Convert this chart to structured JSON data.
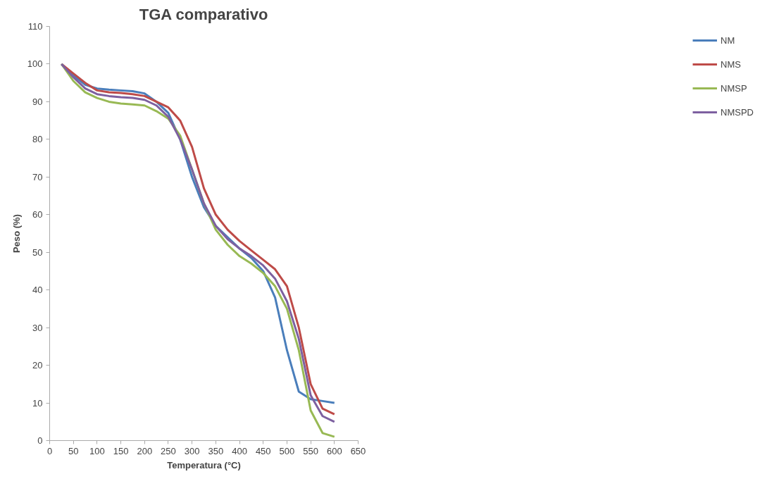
{
  "chart_data": {
    "type": "line",
    "title": "TGA comparativo",
    "xlabel": "Temperatura (°C)",
    "ylabel": "Peso (%)",
    "x": [
      25,
      50,
      75,
      100,
      125,
      150,
      175,
      200,
      225,
      250,
      275,
      300,
      325,
      350,
      375,
      400,
      425,
      450,
      475,
      500,
      525,
      550,
      575,
      600
    ],
    "series": [
      {
        "name": "NM",
        "color": "#4a7ebb",
        "values": [
          100,
          97,
          94.5,
          93.5,
          93.2,
          93,
          92.8,
          92.2,
          90,
          87,
          80,
          70,
          62,
          57,
          54,
          51,
          48.5,
          45,
          38,
          24,
          13,
          11,
          10.5,
          10
        ]
      },
      {
        "name": "NMS",
        "color": "#be4b48",
        "values": [
          100,
          97.5,
          95,
          93,
          92.5,
          92.3,
          92,
          91.5,
          90,
          88.5,
          85,
          78,
          67,
          60,
          56,
          53,
          50.5,
          48,
          45.5,
          41,
          30,
          15,
          8.5,
          7
        ]
      },
      {
        "name": "NMSP",
        "color": "#98b954",
        "values": [
          100,
          95.5,
          92.5,
          91,
          90,
          89.5,
          89.3,
          89,
          87.5,
          85.5,
          81,
          72,
          63,
          56,
          52,
          49,
          47,
          44.5,
          41,
          35,
          24,
          8,
          2,
          1
        ]
      },
      {
        "name": "NMSPD",
        "color": "#7d60a0",
        "values": [
          100,
          96.5,
          93.5,
          92,
          91.5,
          91.2,
          91,
          90.5,
          89,
          86,
          80,
          72,
          63,
          57,
          53.5,
          51,
          49,
          46.5,
          43,
          37,
          27,
          12,
          6.5,
          5
        ]
      }
    ],
    "xlim": [
      0,
      650
    ],
    "xticks": [
      0,
      50,
      100,
      150,
      200,
      250,
      300,
      350,
      400,
      450,
      500,
      550,
      600,
      650
    ],
    "ylim": [
      0,
      110
    ],
    "yticks": [
      0,
      10,
      20,
      30,
      40,
      50,
      60,
      70,
      80,
      90,
      100,
      110
    ],
    "grid": false,
    "legend": "right",
    "marker": "none",
    "line_style": "solid"
  }
}
